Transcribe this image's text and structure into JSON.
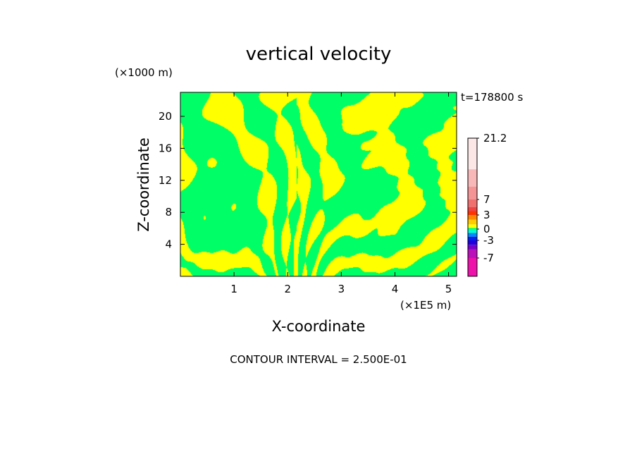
{
  "chart_data": {
    "type": "heatmap",
    "title": "vertical velocity",
    "time_label": "t=178800 s",
    "y_unit_label": "(×1000 m)",
    "x_unit_label": "(×1E5 m)",
    "xlabel": "X-coordinate",
    "ylabel": "Z-coordinate",
    "xlim": [
      0,
      5.15
    ],
    "ylim": [
      0,
      23
    ],
    "x_ticks": [
      1,
      2,
      3,
      4,
      5
    ],
    "y_ticks": [
      4,
      8,
      12,
      16,
      20
    ],
    "contour_interval": "CONTOUR INTERVAL = 2.500E-01",
    "colorbar": {
      "labels": [
        "21.2",
        "7",
        "3",
        "0",
        "-3",
        "-7"
      ],
      "label_values": [
        21.2,
        7,
        3,
        0,
        -3,
        -7
      ],
      "bins": [
        {
          "lo": -10,
          "hi": -7,
          "color": "#ee11aa"
        },
        {
          "lo": -7,
          "hi": -5,
          "color": "#bb11bb"
        },
        {
          "lo": -5,
          "hi": -4,
          "color": "#7700cc"
        },
        {
          "lo": -4,
          "hi": -3,
          "color": "#2200dd"
        },
        {
          "lo": -3,
          "hi": -2,
          "color": "#0022ee"
        },
        {
          "lo": -2,
          "hi": -1,
          "color": "#0088ff"
        },
        {
          "lo": -1,
          "hi": 0,
          "color": "#00ffcc"
        },
        {
          "lo": 0,
          "hi": 0.25,
          "color": "#00ff66"
        },
        {
          "lo": 0.25,
          "hi": 1,
          "color": "#ffff00"
        },
        {
          "lo": 1,
          "hi": 2,
          "color": "#ffcc00"
        },
        {
          "lo": 2,
          "hi": 3,
          "color": "#ff8800"
        },
        {
          "lo": 3,
          "hi": 4,
          "color": "#ff3300"
        },
        {
          "lo": 4,
          "hi": 5,
          "color": "#ee4444"
        },
        {
          "lo": 5,
          "hi": 7,
          "color": "#f07070"
        },
        {
          "lo": 7,
          "hi": 10,
          "color": "#f49494"
        },
        {
          "lo": 10,
          "hi": 14,
          "color": "#f8b8b8"
        },
        {
          "lo": 14,
          "hi": 21.2,
          "color": "#fce6e6"
        }
      ]
    },
    "field_colors": {
      "positive": "#ffff00",
      "near_zero": "#00ff66"
    }
  }
}
